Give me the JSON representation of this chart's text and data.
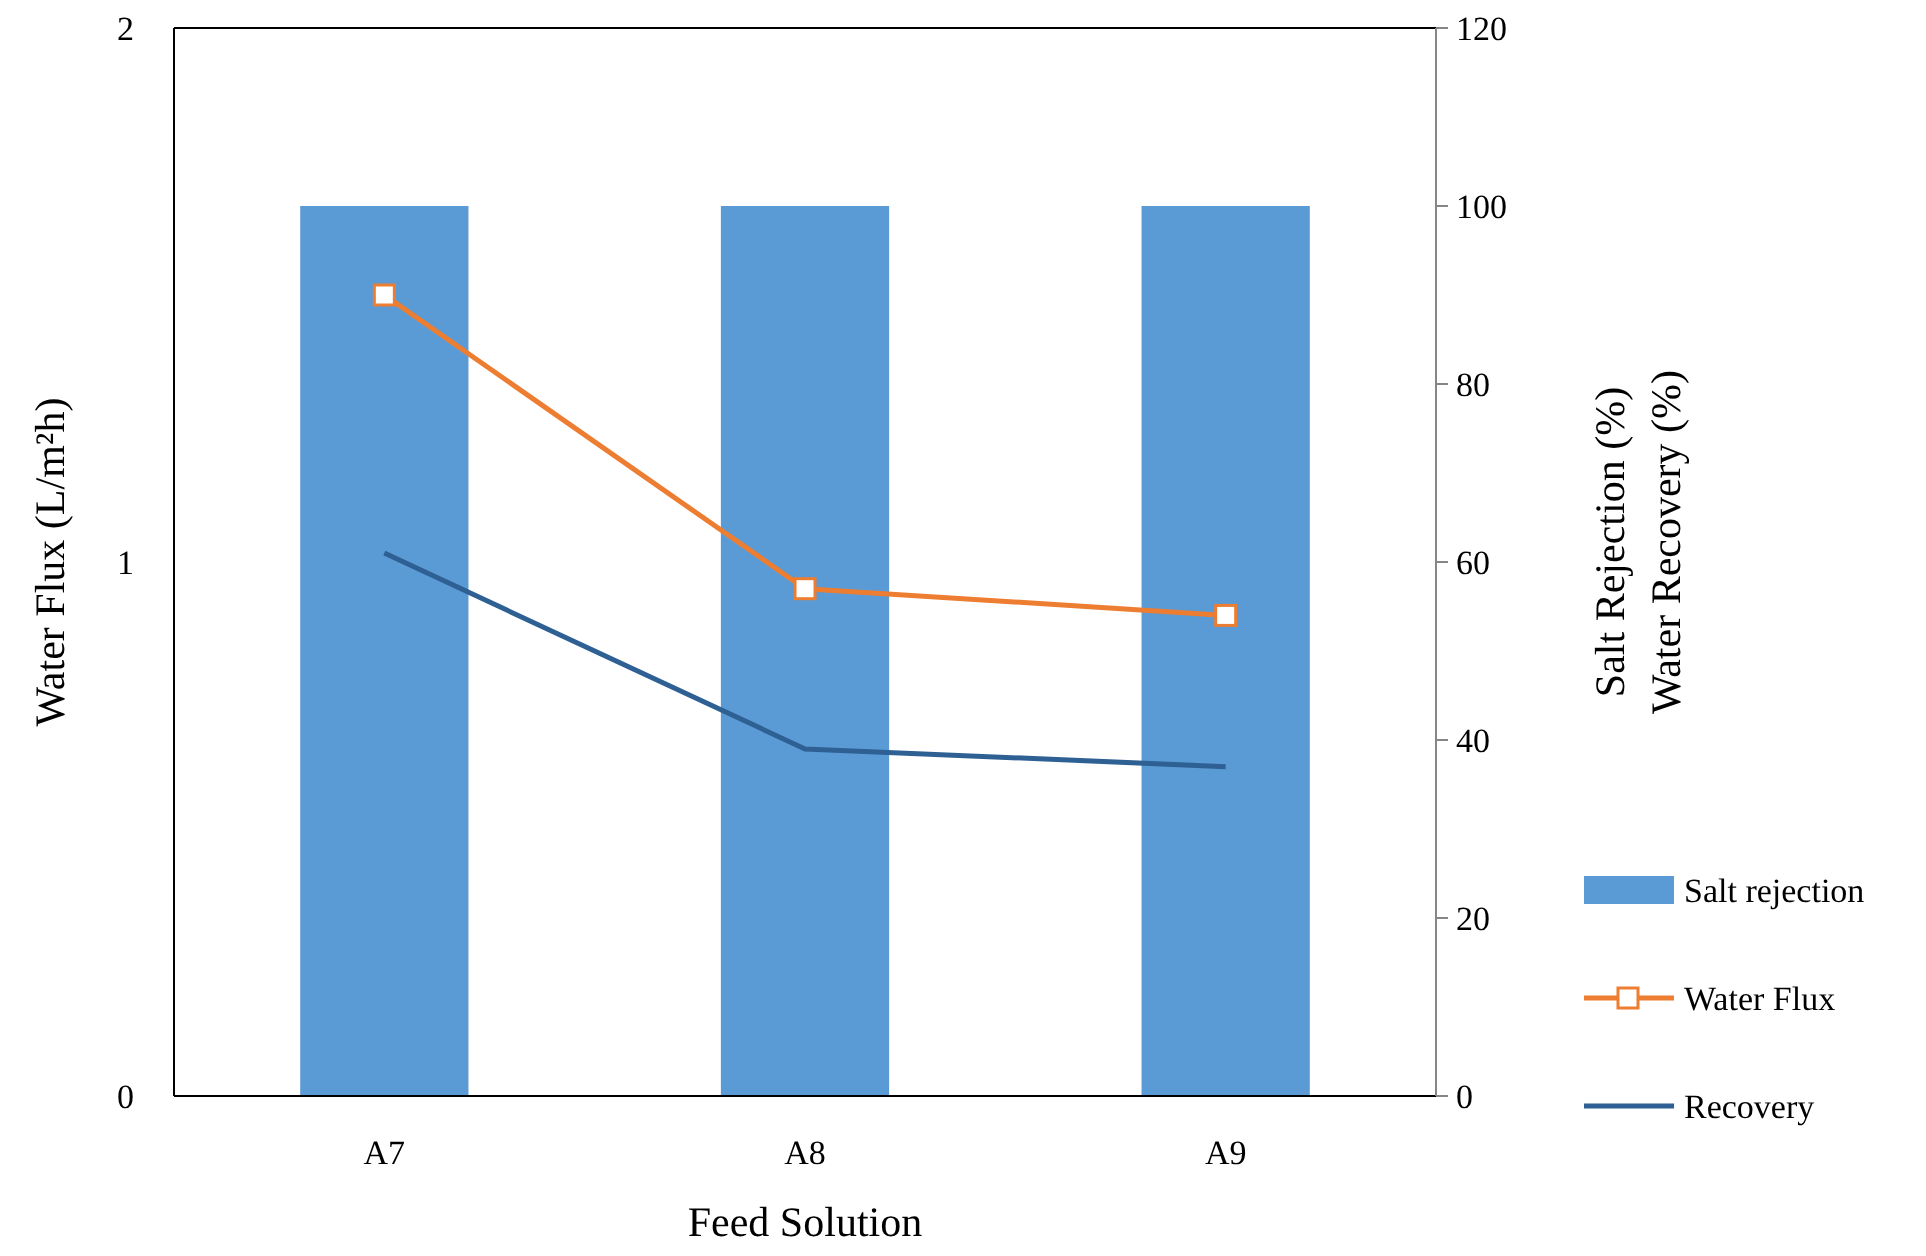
{
  "chart_data": {
    "type": "bar",
    "xlabel": "Feed Solution",
    "ylabel": "Water Flux  (L/m²h)",
    "y2label": "Salt Rejection  (%)\nWater Recovery  (%)",
    "categories": [
      "A7",
      "A8",
      "A9"
    ],
    "series": [
      {
        "name": "Salt rejection",
        "axis": "y2",
        "color": "#5b9bd5",
        "values": [
          100,
          100,
          100
        ]
      },
      {
        "name": "Water Flux",
        "type": "line",
        "axis": "y",
        "color": "#ed7d31",
        "marker": "square",
        "values": [
          1.5,
          0.95,
          0.9
        ]
      },
      {
        "name": "Recovery",
        "type": "line",
        "axis": "y2",
        "color": "#2e6094",
        "marker": "none",
        "values": [
          61,
          39,
          37
        ]
      }
    ],
    "ylim": [
      0,
      2
    ],
    "yticks": [
      0,
      1,
      2
    ],
    "y2lim": [
      0,
      120
    ],
    "y2ticks": [
      0,
      20,
      40,
      60,
      80,
      100,
      120
    ],
    "grid": false,
    "legend": "right"
  }
}
